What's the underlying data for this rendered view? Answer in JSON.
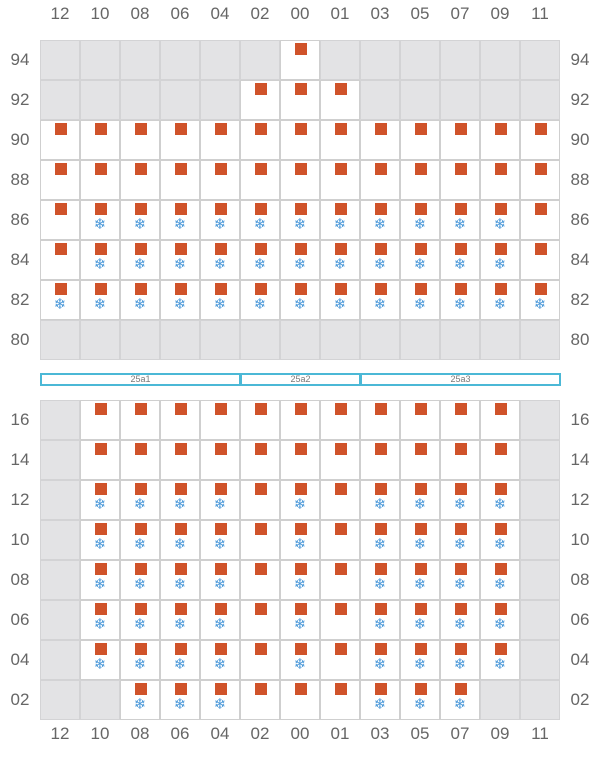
{
  "colors": {
    "reefer_plug": "#d0532a",
    "power": "#4a98d9",
    "empty_cell": "#ffffff",
    "unavailable_cell": "#e3e3e5",
    "grid_line": "#cfcfcf",
    "container": "#4bb8d6",
    "label": "#666666"
  },
  "icons": {
    "slot_marker": "square",
    "reefer": "snowflake-icon"
  },
  "symbols": {
    "snowflake": "❄"
  },
  "columns": [
    "12",
    "10",
    "08",
    "06",
    "04",
    "02",
    "00",
    "01",
    "03",
    "05",
    "07",
    "09",
    "11"
  ],
  "deck": {
    "rows": [
      {
        "tier": "94",
        "cells": "XXXXXXSXXXXXX"
      },
      {
        "tier": "92",
        "cells": "XXXXXSSSXXXXX"
      },
      {
        "tier": "90",
        "cells": "SSSSSSSSSSSSS"
      },
      {
        "tier": "88",
        "cells": "SSSSSSSSSSSSS"
      },
      {
        "tier": "86",
        "cells": "SRRRRRRRRRRRS"
      },
      {
        "tier": "84",
        "cells": "SRRRRRRRRRRRS"
      },
      {
        "tier": "82",
        "cells": "RRRRRRRRRRRRR"
      },
      {
        "tier": "80",
        "cells": "XXXXXXXXXXXXX"
      }
    ]
  },
  "containers": [
    {
      "label": "25a1",
      "span": 5
    },
    {
      "label": "25a2",
      "span": 3
    },
    {
      "label": "25a3",
      "span": 5
    }
  ],
  "hold": {
    "rows": [
      {
        "tier": "16",
        "cells": "XSSSSSSSSSSSX"
      },
      {
        "tier": "14",
        "cells": "XSSSSSSSSSSSX"
      },
      {
        "tier": "12",
        "cells": "XRRRRSRSRRRRX"
      },
      {
        "tier": "10",
        "cells": "XRRRRSRSRRRRX"
      },
      {
        "tier": "08",
        "cells": "XRRRRSRSRRRRX"
      },
      {
        "tier": "06",
        "cells": "XRRRRSRSRRRRX"
      },
      {
        "tier": "04",
        "cells": "XRRRRSRSRRRRX"
      },
      {
        "tier": "02",
        "cells": "XXRRRSSSRRRXX"
      }
    ]
  }
}
